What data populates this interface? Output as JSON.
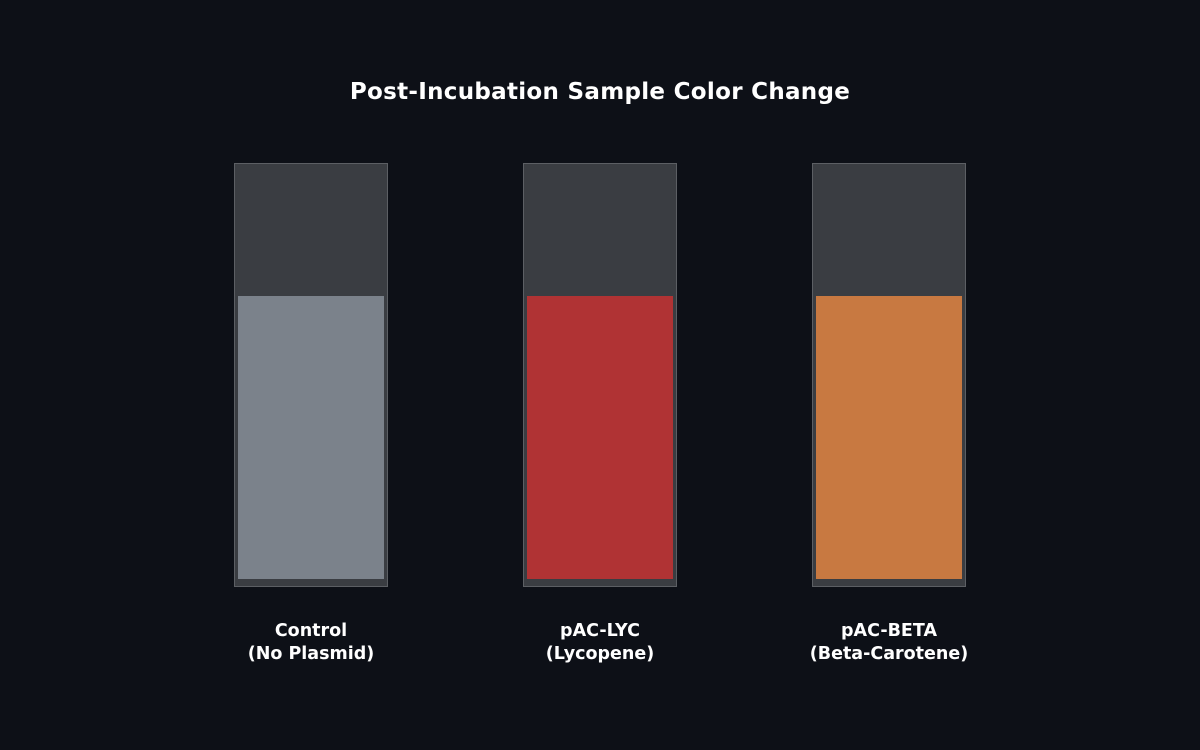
{
  "title": "Post-Incubation Sample Color Change",
  "samples": [
    {
      "name": "Control",
      "sub": "(No Plasmid)",
      "color": "#7b828b",
      "fill_fraction": 0.67
    },
    {
      "name": "pAC-LYC",
      "sub": "(Lycopene)",
      "color": "#b03334",
      "fill_fraction": 0.67
    },
    {
      "name": "pAC-BETA",
      "sub": "(Beta-Carotene)",
      "color": "#c87941",
      "fill_fraction": 0.67
    }
  ]
}
